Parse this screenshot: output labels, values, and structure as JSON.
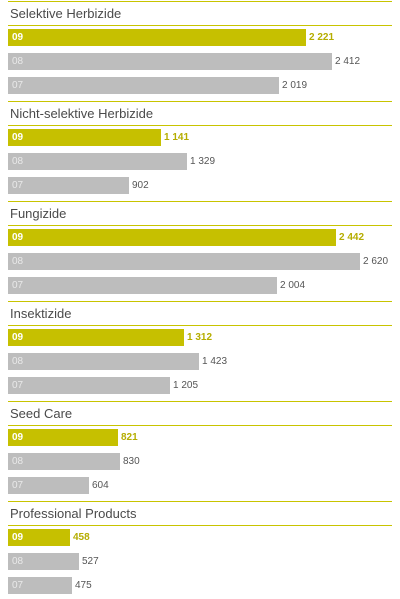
{
  "chart_data": {
    "type": "bar",
    "orientation": "horizontal",
    "colors": {
      "current": "#c6c000",
      "prior": "#bdbdbd",
      "accent_line": "#c8c400"
    },
    "groups": [
      {
        "title": "Selektive Herbizide",
        "bars": [
          {
            "year": "09",
            "value": 2221,
            "label": "2 221"
          },
          {
            "year": "08",
            "value": 2412,
            "label": "2 412"
          },
          {
            "year": "07",
            "value": 2019,
            "label": "2 019"
          }
        ]
      },
      {
        "title": "Nicht-selektive Herbizide",
        "bars": [
          {
            "year": "09",
            "value": 1141,
            "label": "1 141"
          },
          {
            "year": "08",
            "value": 1329,
            "label": "1 329"
          },
          {
            "year": "07",
            "value": 902,
            "label": "902"
          }
        ]
      },
      {
        "title": "Fungizide",
        "bars": [
          {
            "year": "09",
            "value": 2442,
            "label": "2 442"
          },
          {
            "year": "08",
            "value": 2620,
            "label": "2 620"
          },
          {
            "year": "07",
            "value": 2004,
            "label": "2 004"
          }
        ]
      },
      {
        "title": "Insektizide",
        "bars": [
          {
            "year": "09",
            "value": 1312,
            "label": "1 312"
          },
          {
            "year": "08",
            "value": 1423,
            "label": "1 423"
          },
          {
            "year": "07",
            "value": 1205,
            "label": "1 205"
          }
        ]
      },
      {
        "title": "Seed Care",
        "bars": [
          {
            "year": "09",
            "value": 821,
            "label": "821"
          },
          {
            "year": "08",
            "value": 830,
            "label": "830"
          },
          {
            "year": "07",
            "value": 604,
            "label": "604"
          }
        ]
      },
      {
        "title": "Professional Products",
        "bars": [
          {
            "year": "09",
            "value": 458,
            "label": "458"
          },
          {
            "year": "08",
            "value": 527,
            "label": "527"
          },
          {
            "year": "07",
            "value": 475,
            "label": "475"
          }
        ]
      }
    ]
  }
}
